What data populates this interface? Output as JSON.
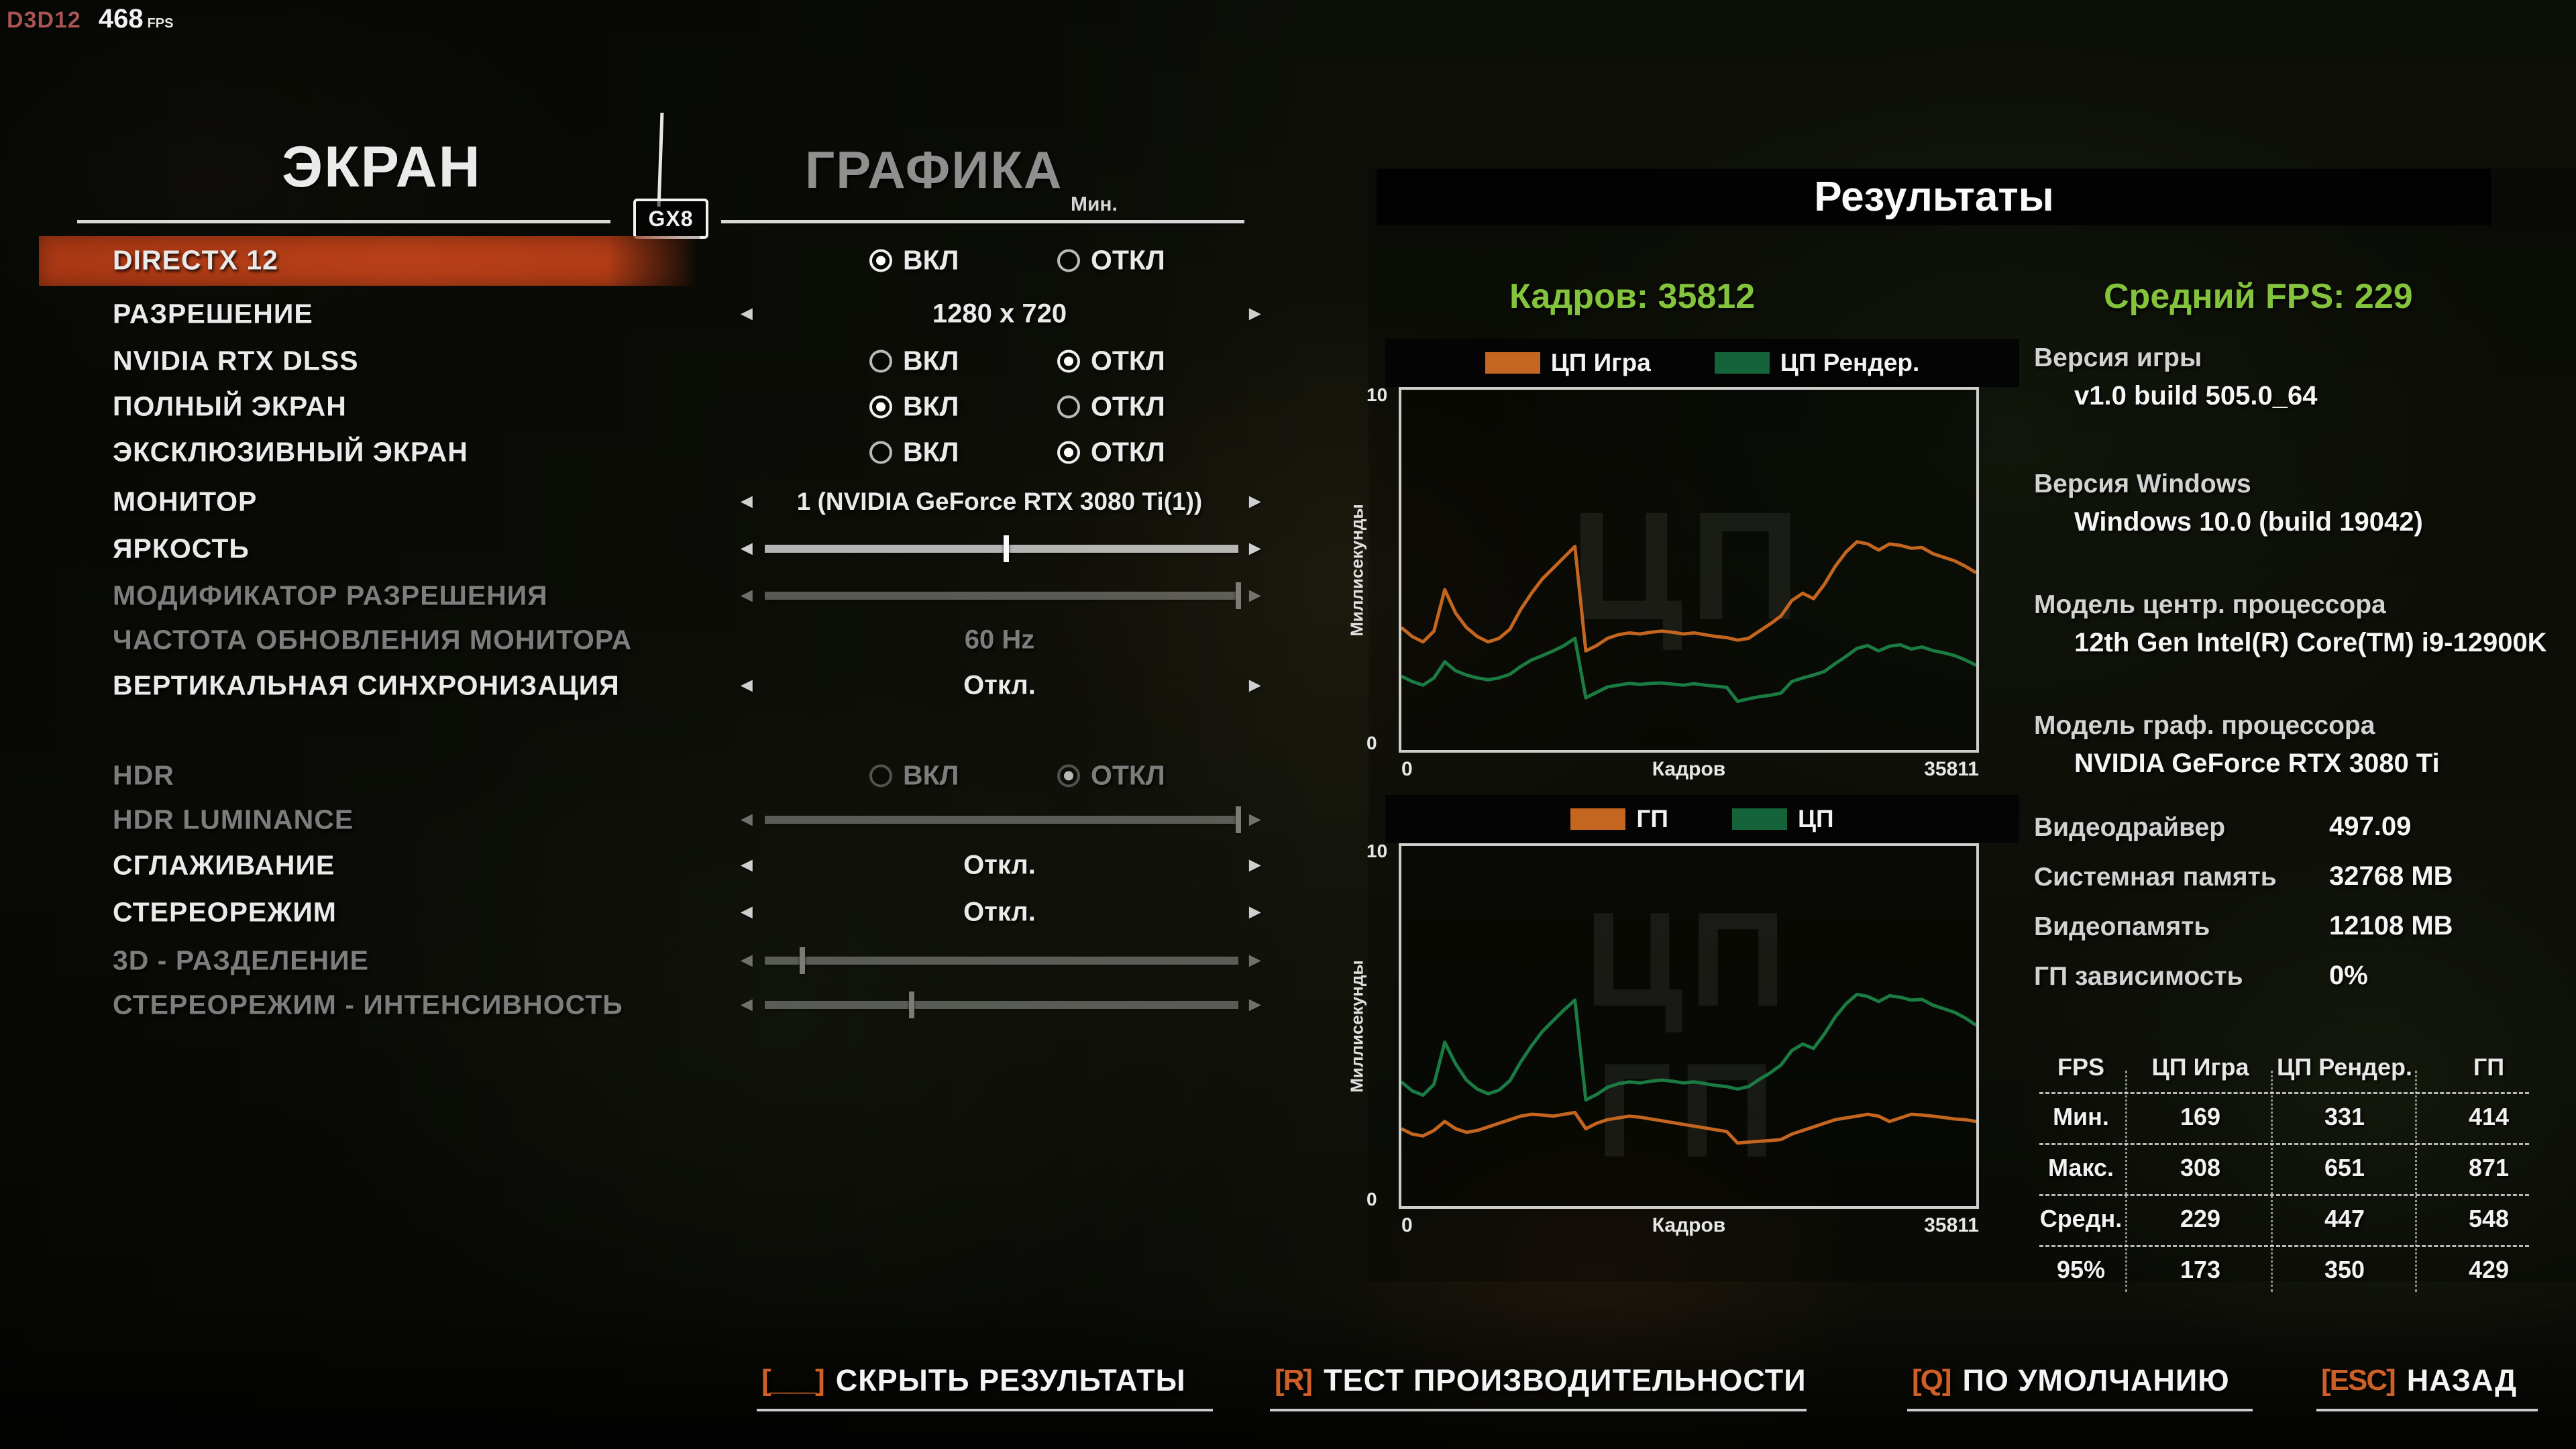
{
  "fps_overlay": {
    "api": "D3D12",
    "value": "468",
    "unit": "FPS"
  },
  "header": {
    "tab_screen": "ЭКРАН",
    "tab_graphics": "ГРАФИКА",
    "min_label": "Мин.",
    "logo": "GX8"
  },
  "radio": {
    "on": "ВКЛ",
    "off": "ОТКЛ"
  },
  "settings": [
    {
      "label": "DIRECTX 12",
      "type": "radio",
      "value": "ВКЛ",
      "enabled": true,
      "highlighted": true
    },
    {
      "label": "РАЗРЕШЕНИЕ",
      "type": "stepper",
      "value": "1280 x 720",
      "enabled": true
    },
    {
      "label": "NVIDIA RTX DLSS",
      "type": "radio",
      "value": "ОТКЛ",
      "enabled": true
    },
    {
      "label": "ПОЛНЫЙ ЭКРАН",
      "type": "radio",
      "value": "ВКЛ",
      "enabled": true
    },
    {
      "label": "ЭКСКЛЮЗИВНЫЙ ЭКРАН",
      "type": "radio",
      "value": "ОТКЛ",
      "enabled": true
    },
    {
      "label": "МОНИТОР",
      "type": "stepper",
      "value": "1 (NVIDIA GeForce RTX 3080 Ti(1))",
      "enabled": true
    },
    {
      "label": "ЯРКОСТЬ",
      "type": "slider",
      "percent": 51,
      "enabled": true
    },
    {
      "label": "МОДИФИКАТОР РАЗРЕШЕНИЯ",
      "type": "slider",
      "percent": 100,
      "enabled": false
    },
    {
      "label": "ЧАСТОТА ОБНОВЛЕНИЯ МОНИТОРА",
      "type": "value",
      "value": "60 Hz",
      "enabled": false
    },
    {
      "label": "ВЕРТИКАЛЬНАЯ СИНХРОНИЗАЦИЯ",
      "type": "stepper",
      "value": "Откл.",
      "enabled": true
    },
    {
      "label": "HDR",
      "type": "radio",
      "value": "ОТКЛ",
      "enabled": false
    },
    {
      "label": "HDR LUMINANCE",
      "type": "slider",
      "percent": 100,
      "enabled": false
    },
    {
      "label": "СГЛАЖИВАНИЕ",
      "type": "stepper",
      "value": "Откл.",
      "enabled": true
    },
    {
      "label": "СТЕРЕОРЕЖИМ",
      "type": "stepper",
      "value": "Откл.",
      "enabled": true
    },
    {
      "label": "3D - РАЗДЕЛЕНИЕ",
      "type": "slider",
      "percent": 8,
      "enabled": false
    },
    {
      "label": "СТЕРЕОРЕЖИМ - ИНТЕНСИВНОСТЬ",
      "type": "slider",
      "percent": 31,
      "enabled": false
    }
  ],
  "results": {
    "title": "Результаты",
    "frames_label": "Кадров: 35812",
    "avg_fps_label": "Средний FPS: 229",
    "info_blocks": [
      {
        "label": "Версия игры",
        "value": "v1.0 build 505.0_64"
      },
      {
        "label": "Версия Windows",
        "value": "Windows 10.0 (build 19042)"
      },
      {
        "label": "Модель центр. процессора",
        "value": "12th Gen Intel(R) Core(TM) i9-12900K"
      },
      {
        "label": "Модель граф. процессора",
        "value": "NVIDIA GeForce RTX 3080 Ti"
      }
    ],
    "info_rows": [
      {
        "label": "Видеодрайвер",
        "value": "497.09"
      },
      {
        "label": "Системная память",
        "value": "32768 MB"
      },
      {
        "label": "Видеопамять",
        "value": "12108 MB"
      },
      {
        "label": "ГП зависимость",
        "value": "0%"
      }
    ],
    "table": {
      "headers": [
        "FPS",
        "ЦП Игра",
        "ЦП Рендер.",
        "ГП"
      ],
      "rows": [
        {
          "label": "Мин.",
          "values": [
            "169",
            "331",
            "414"
          ]
        },
        {
          "label": "Макс.",
          "values": [
            "308",
            "651",
            "871"
          ]
        },
        {
          "label": "Средн.",
          "values": [
            "229",
            "447",
            "548"
          ]
        },
        {
          "label": "95%",
          "values": [
            "173",
            "350",
            "429"
          ]
        }
      ]
    }
  },
  "chart_data": [
    {
      "type": "line",
      "title": "",
      "xlabel": "Кадров",
      "ylabel": "Миллисекунды",
      "xlim": [
        0,
        35811
      ],
      "ylim": [
        0,
        10
      ],
      "x_tick_labels": [
        "0",
        "35811"
      ],
      "y_tick_labels": [
        "0",
        "10"
      ],
      "legend_position": "top",
      "grid": false,
      "watermarks": [
        "ЦП"
      ],
      "series": [
        {
          "name": "ЦП Игра",
          "color": "#c4661f",
          "values": [
            3.4,
            3.15,
            3.0,
            3.3,
            4.45,
            3.8,
            3.4,
            3.15,
            3.0,
            3.1,
            3.35,
            3.9,
            4.35,
            4.75,
            5.05,
            5.35,
            5.65,
            2.75,
            2.9,
            3.1,
            3.2,
            3.25,
            3.22,
            3.27,
            3.3,
            3.27,
            3.22,
            3.25,
            3.2,
            3.15,
            3.12,
            3.05,
            3.1,
            3.3,
            3.5,
            3.72,
            4.15,
            4.35,
            4.2,
            4.6,
            5.1,
            5.5,
            5.78,
            5.72,
            5.55,
            5.72,
            5.68,
            5.6,
            5.62,
            5.45,
            5.35,
            5.25,
            5.1,
            4.92
          ]
        },
        {
          "name": "ЦП Рендер.",
          "color": "#1b7c43",
          "values": [
            2.05,
            1.9,
            1.8,
            2.0,
            2.45,
            2.2,
            2.08,
            2.0,
            1.95,
            2.0,
            2.1,
            2.32,
            2.5,
            2.62,
            2.75,
            2.9,
            3.1,
            1.45,
            1.6,
            1.75,
            1.8,
            1.85,
            1.82,
            1.85,
            1.86,
            1.83,
            1.8,
            1.84,
            1.8,
            1.77,
            1.74,
            1.35,
            1.42,
            1.48,
            1.52,
            1.58,
            1.9,
            2.0,
            2.08,
            2.18,
            2.4,
            2.6,
            2.82,
            2.9,
            2.75,
            2.88,
            2.92,
            2.8,
            2.86,
            2.76,
            2.7,
            2.62,
            2.5,
            2.35
          ]
        }
      ]
    },
    {
      "type": "line",
      "title": "",
      "xlabel": "Кадров",
      "ylabel": "Миллисекунды",
      "xlim": [
        0,
        35811
      ],
      "ylim": [
        0,
        10
      ],
      "x_tick_labels": [
        "0",
        "35811"
      ],
      "y_tick_labels": [
        "0",
        "10"
      ],
      "legend_position": "top",
      "grid": false,
      "watermarks": [
        "ЦП",
        "ГП"
      ],
      "series": [
        {
          "name": "ГП",
          "color": "#c4661f",
          "values": [
            2.15,
            2.0,
            1.95,
            2.1,
            2.35,
            2.15,
            2.05,
            2.1,
            2.2,
            2.3,
            2.4,
            2.5,
            2.55,
            2.53,
            2.5,
            2.55,
            2.6,
            2.15,
            2.3,
            2.4,
            2.45,
            2.5,
            2.47,
            2.42,
            2.37,
            2.32,
            2.27,
            2.22,
            2.17,
            2.12,
            2.07,
            1.75,
            1.78,
            1.8,
            1.82,
            1.85,
            2.0,
            2.1,
            2.2,
            2.3,
            2.4,
            2.45,
            2.5,
            2.55,
            2.5,
            2.35,
            2.45,
            2.55,
            2.53,
            2.5,
            2.46,
            2.42,
            2.4,
            2.35
          ]
        },
        {
          "name": "ЦП",
          "color": "#1b7c43",
          "values": [
            3.45,
            3.2,
            3.08,
            3.38,
            4.55,
            3.95,
            3.5,
            3.25,
            3.12,
            3.22,
            3.48,
            4.0,
            4.45,
            4.85,
            5.15,
            5.45,
            5.72,
            2.95,
            3.1,
            3.3,
            3.4,
            3.45,
            3.42,
            3.47,
            3.5,
            3.47,
            3.42,
            3.45,
            3.4,
            3.35,
            3.32,
            3.25,
            3.32,
            3.52,
            3.7,
            3.92,
            4.32,
            4.5,
            4.38,
            4.78,
            5.25,
            5.62,
            5.88,
            5.82,
            5.68,
            5.84,
            5.8,
            5.72,
            5.74,
            5.58,
            5.48,
            5.38,
            5.22,
            5.02
          ]
        }
      ]
    }
  ],
  "footer": {
    "buttons": [
      {
        "key": "[___]",
        "label": "СКРЫТЬ РЕЗУЛЬТАТЫ"
      },
      {
        "key": "[R]",
        "label": "ТЕСТ ПРОИЗВОДИТЕЛЬНОСТИ"
      },
      {
        "key": "[Q]",
        "label": "ПО УМОЛЧАНИЮ"
      },
      {
        "key": "[ESC]",
        "label": "НАЗАД"
      }
    ]
  },
  "colors": {
    "accent_orange": "#c4661f",
    "chart_green": "#1b7c43",
    "green_text": "#84c43d",
    "highlight_red": "#b13c16",
    "key_orange": "#cd5f27"
  }
}
